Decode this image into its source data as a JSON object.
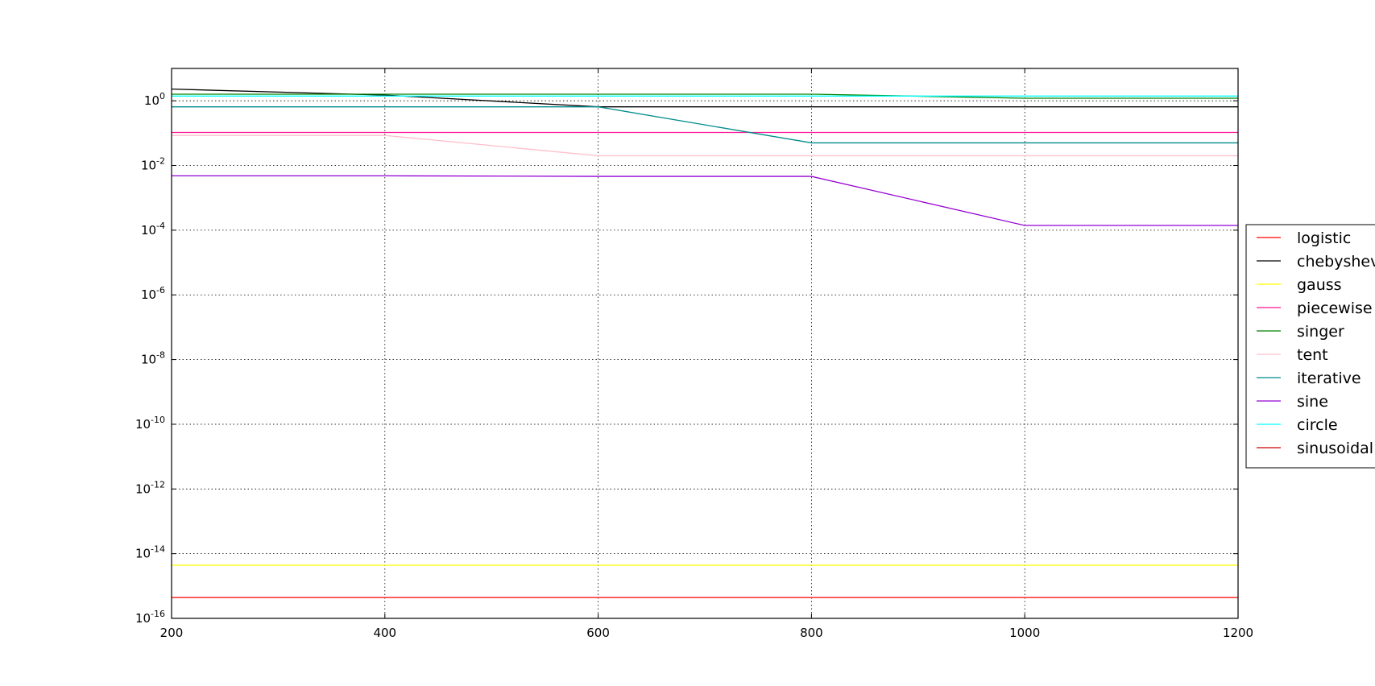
{
  "chart_data": {
    "type": "line",
    "title": "",
    "xlabel": "",
    "ylabel": "",
    "x": [
      200,
      400,
      600,
      800,
      1000,
      1200
    ],
    "xlim": [
      200,
      1200
    ],
    "ylim": [
      1e-16,
      10
    ],
    "yscale": "log",
    "grid": true,
    "legend_position": "right",
    "x_ticks": [
      "200",
      "400",
      "600",
      "800",
      "1000",
      "1200"
    ],
    "y_ticks": [
      {
        "value": 1,
        "base": "10",
        "exp": "0"
      },
      {
        "value": 0.01,
        "base": "10",
        "exp": "-2"
      },
      {
        "value": 0.0001,
        "base": "10",
        "exp": "-4"
      },
      {
        "value": 1e-06,
        "base": "10",
        "exp": "-6"
      },
      {
        "value": 1e-08,
        "base": "10",
        "exp": "-8"
      },
      {
        "value": 1e-10,
        "base": "10",
        "exp": "-10"
      },
      {
        "value": 1e-12,
        "base": "10",
        "exp": "-12"
      },
      {
        "value": 1e-14,
        "base": "10",
        "exp": "-14"
      },
      {
        "value": 1e-16,
        "base": "10",
        "exp": "-16"
      }
    ],
    "series": [
      {
        "name": "logistic",
        "color": "#ff0000",
        "values": [
          4.4e-16,
          4.4e-16,
          4.4e-16,
          4.4e-16,
          4.4e-16,
          4.4e-16
        ]
      },
      {
        "name": "chebyshev",
        "color": "#000000",
        "values": [
          2.3,
          1.5,
          0.65,
          0.65,
          0.65,
          0.65
        ]
      },
      {
        "name": "gauss",
        "color": "#ffff00",
        "values": [
          4.4e-15,
          4.4e-15,
          4.4e-15,
          4.4e-15,
          4.4e-15,
          4.4e-15
        ]
      },
      {
        "name": "piecewise",
        "color": "#ff1493",
        "values": [
          0.105,
          0.105,
          0.105,
          0.105,
          0.105,
          0.105
        ]
      },
      {
        "name": "singer",
        "color": "#008000",
        "values": [
          1.6,
          1.6,
          1.6,
          1.6,
          1.2,
          1.2
        ]
      },
      {
        "name": "tent",
        "color": "#ffc0cb",
        "values": [
          0.085,
          0.085,
          0.02,
          0.02,
          0.02,
          0.02
        ]
      },
      {
        "name": "iterative",
        "color": "#008b8b",
        "values": [
          0.65,
          0.65,
          0.65,
          0.05,
          0.05,
          0.05
        ]
      },
      {
        "name": "sine",
        "color": "#9400d3",
        "values": [
          0.0048,
          0.0048,
          0.0046,
          0.0046,
          0.00014,
          0.00014
        ]
      },
      {
        "name": "circle",
        "color": "#00ffff",
        "values": [
          1.4,
          1.4,
          1.4,
          1.4,
          1.4,
          1.4
        ]
      },
      {
        "name": "sinusoidal",
        "color": "#cc0000",
        "values": [
          null,
          null,
          null,
          null,
          null,
          null
        ]
      }
    ]
  }
}
